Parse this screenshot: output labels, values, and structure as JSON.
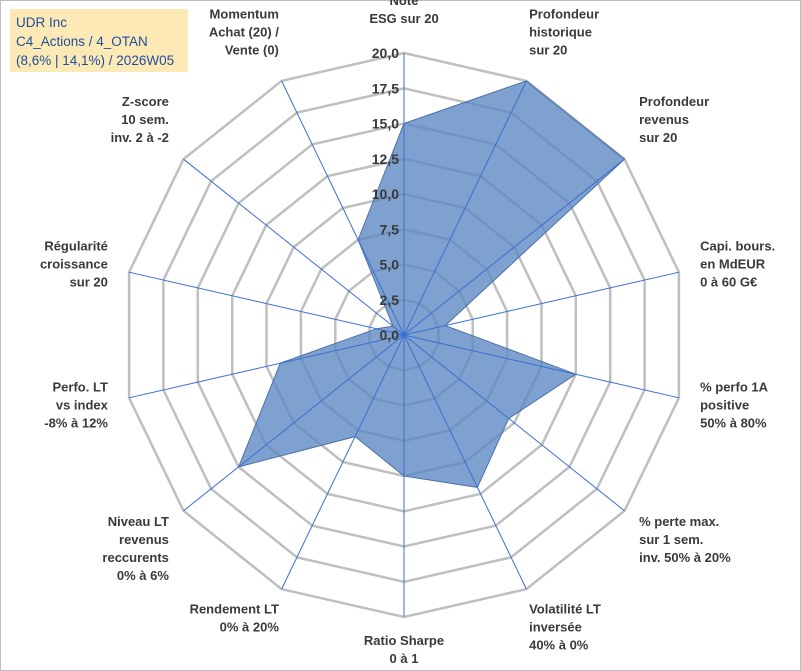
{
  "title_box": {
    "line1": "UDR Inc",
    "line2": "C4_Actions / 4_OTAN",
    "line3": "(8,6% | 14,1%) / 2026W05"
  },
  "chart_data": {
    "type": "radar",
    "range": [
      0,
      20
    ],
    "tick_labels": [
      "0,0",
      "2,5",
      "5,0",
      "7,5",
      "10,0",
      "12,5",
      "15,0",
      "17,5",
      "20,0"
    ],
    "axes": [
      [
        "Note",
        "ESG sur 20"
      ],
      [
        "Profondeur",
        "historique",
        "sur 20"
      ],
      [
        "Profondeur",
        "revenus",
        "sur 20"
      ],
      [
        "Capi. bours.",
        "en MdEUR",
        "0 à 60 G€"
      ],
      [
        "% perfo 1A",
        "positive",
        "50% à 80%"
      ],
      [
        "% perte max.",
        "sur 1 sem.",
        "inv. 50% à 20%"
      ],
      [
        "Volatilité LT",
        "inversée",
        "40% à 0%"
      ],
      [
        "Ratio Sharpe",
        "0 à 1"
      ],
      [
        "Rendement LT",
        "0% à 20%"
      ],
      [
        "Niveau LT",
        "revenus",
        "reccurents",
        "0% à 6%"
      ],
      [
        "Perfo. LT",
        "vs index",
        "-8% à 12%"
      ],
      [
        "Régularité",
        "croissance",
        "sur 20"
      ],
      [
        "Z-score",
        "10 sem.",
        "inv. 2 à -2"
      ],
      [
        "Momentum",
        "Achat (20) /",
        "Vente (0)"
      ]
    ],
    "values": [
      15.0,
      20.0,
      20.0,
      3.0,
      12.5,
      9.5,
      12.0,
      10.0,
      8.0,
      15.0,
      9.0,
      2.0,
      1.0,
      7.5
    ],
    "fill_color": "#5b86c2",
    "fill_opacity": 0.78,
    "outline_color": "#4a72aa",
    "grid_color": "#bfbfbf",
    "axis_line_color": "#3b6fd1",
    "grid": true,
    "legend": "none"
  }
}
